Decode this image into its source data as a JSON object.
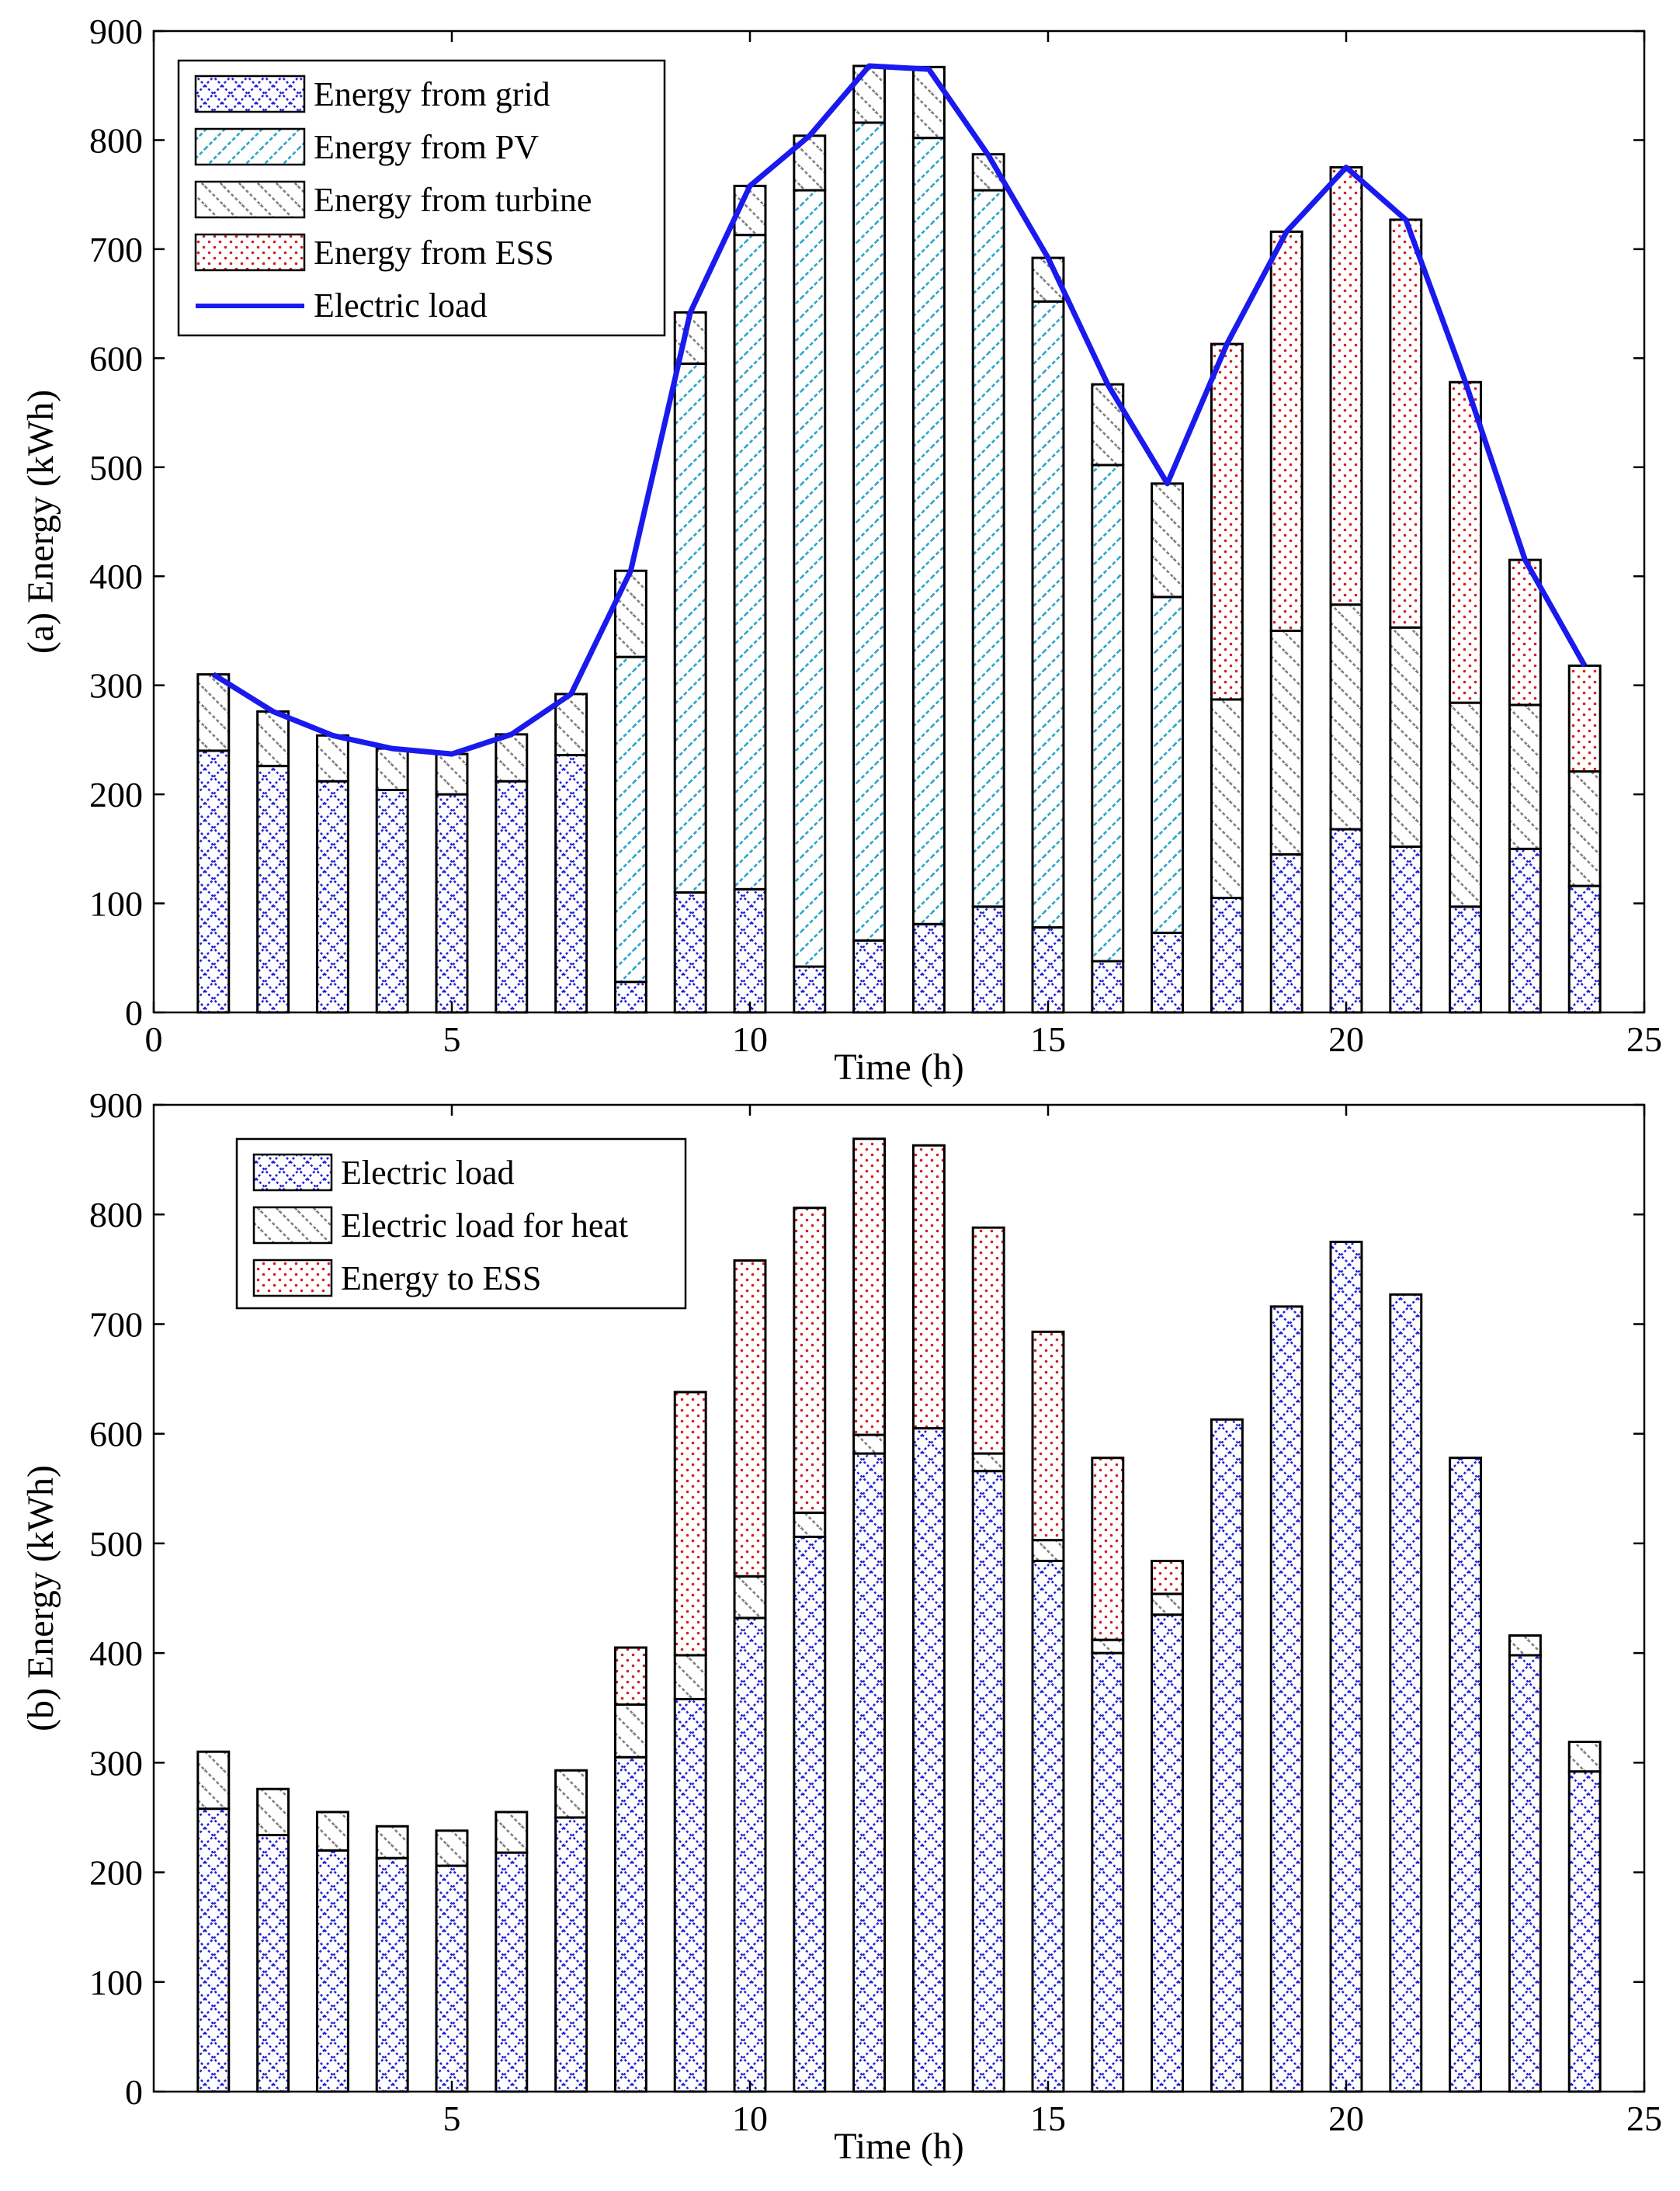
{
  "colors": {
    "grid_blue": "#2323d9",
    "pv_cyan": "#2aa6c9",
    "turbine_gray": "#808080",
    "ess_red": "#d42020",
    "load_line": "#1a1aee"
  },
  "chart_data": [
    {
      "type": "bar",
      "stacked": true,
      "panel_label": "(a)",
      "xlabel": "Time (h)",
      "ylabel": "(a) Energy (kWh)",
      "xlim": [
        0,
        25
      ],
      "ylim": [
        0,
        900
      ],
      "xticks": [
        0,
        5,
        10,
        15,
        20,
        25
      ],
      "yticks": [
        0,
        100,
        200,
        300,
        400,
        500,
        600,
        700,
        800,
        900
      ],
      "x": [
        1,
        2,
        3,
        4,
        5,
        6,
        7,
        8,
        9,
        10,
        11,
        12,
        13,
        14,
        15,
        16,
        17,
        18,
        19,
        20,
        21,
        22,
        23,
        24
      ],
      "legend_position": "top-left",
      "series": [
        {
          "name": "Energy from grid",
          "pattern": "grid",
          "color": "#2323d9",
          "values": [
            240,
            226,
            212,
            204,
            200,
            212,
            236,
            28,
            110,
            113,
            42,
            66,
            81,
            97,
            78,
            47,
            73,
            105,
            145,
            168,
            152,
            97,
            150,
            116
          ]
        },
        {
          "name": "Energy from PV",
          "pattern": "pv",
          "color": "#2aa6c9",
          "values": [
            0,
            0,
            0,
            0,
            0,
            0,
            0,
            298,
            485,
            600,
            712,
            750,
            721,
            657,
            574,
            455,
            308,
            0,
            0,
            0,
            0,
            0,
            0,
            0
          ]
        },
        {
          "name": "Energy from turbine",
          "pattern": "turbine",
          "color": "#808080",
          "values": [
            70,
            50,
            42,
            38,
            37,
            43,
            56,
            79,
            47,
            45,
            50,
            52,
            65,
            33,
            40,
            74,
            104,
            182,
            205,
            206,
            201,
            187,
            132,
            105
          ]
        },
        {
          "name": "Energy from ESS",
          "pattern": "ess",
          "color": "#d42020",
          "values": [
            0,
            0,
            0,
            0,
            0,
            0,
            0,
            0,
            0,
            0,
            0,
            0,
            0,
            0,
            0,
            0,
            0,
            326,
            366,
            401,
            374,
            294,
            133,
            97
          ]
        }
      ],
      "line_series": {
        "name": "Electric load",
        "color": "#1a1aee",
        "values": [
          310,
          276,
          254,
          242,
          237,
          255,
          292,
          405,
          642,
          758,
          804,
          868,
          865,
          786,
          692,
          576,
          485,
          613,
          716,
          775,
          727,
          578,
          415,
          318
        ]
      }
    },
    {
      "type": "bar",
      "stacked": true,
      "panel_label": "(b)",
      "xlabel": "Time (h)",
      "ylabel": "(b) Energy (kWh)",
      "xlim": [
        0,
        25
      ],
      "ylim": [
        0,
        900
      ],
      "xticks": [
        5,
        10,
        15,
        20,
        25
      ],
      "yticks": [
        0,
        100,
        200,
        300,
        400,
        500,
        600,
        700,
        800,
        900
      ],
      "x": [
        1,
        2,
        3,
        4,
        5,
        6,
        7,
        8,
        9,
        10,
        11,
        12,
        13,
        14,
        15,
        16,
        17,
        18,
        19,
        20,
        21,
        22,
        23,
        24
      ],
      "legend_position": "top-left",
      "series": [
        {
          "name": "Electric load",
          "pattern": "grid",
          "color": "#2323d9",
          "values": [
            258,
            234,
            220,
            213,
            206,
            218,
            250,
            305,
            358,
            432,
            506,
            582,
            605,
            566,
            484,
            400,
            435,
            613,
            716,
            775,
            727,
            578,
            398,
            292
          ]
        },
        {
          "name": "Electric load for heat",
          "pattern": "turbine",
          "color": "#808080",
          "values": [
            52,
            42,
            35,
            29,
            32,
            37,
            43,
            48,
            40,
            38,
            22,
            17,
            0,
            16,
            19,
            12,
            19,
            0,
            0,
            0,
            0,
            0,
            18,
            27
          ]
        },
        {
          "name": "Energy to ESS",
          "pattern": "ess",
          "color": "#d42020",
          "values": [
            0,
            0,
            0,
            0,
            0,
            0,
            0,
            52,
            240,
            288,
            278,
            270,
            258,
            206,
            190,
            166,
            30,
            0,
            0,
            0,
            0,
            0,
            0,
            0
          ]
        }
      ]
    }
  ]
}
